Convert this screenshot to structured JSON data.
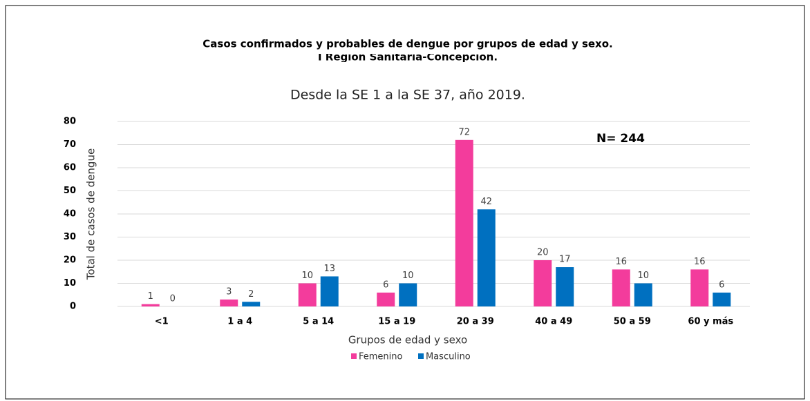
{
  "chart_data": {
    "type": "bar",
    "title": [
      "Casos confirmados y probables de dengue por grupos de edad y sexo.",
      "I Región Sanitaria-Concepción."
    ],
    "subtitle": "Desde la SE 1 a la SE 37, año 2019.",
    "annotation": "N= 244",
    "xlabel": "Grupos de edad y sexo",
    "ylabel": "Total de casos de dengue",
    "categories": [
      "<1",
      "1 a 4",
      "5 a 14",
      "15 a 19",
      "20 a 39",
      "40 a 49",
      "50 a 59",
      "60 y más"
    ],
    "series": [
      {
        "name": "Femenino",
        "color": "#f33c9c",
        "values": [
          1,
          3,
          10,
          6,
          72,
          20,
          16,
          16
        ]
      },
      {
        "name": "Masculino",
        "color": "#0070c0",
        "values": [
          0,
          2,
          13,
          10,
          42,
          17,
          10,
          6
        ]
      }
    ],
    "ylim": [
      0,
      80
    ],
    "yticks": [
      0,
      10,
      20,
      30,
      40,
      50,
      60,
      70,
      80
    ],
    "grid": true,
    "legend": "bottom"
  }
}
